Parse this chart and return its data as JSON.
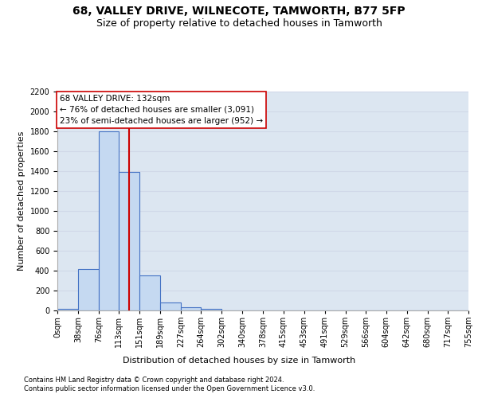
{
  "title_line1": "68, VALLEY DRIVE, WILNECOTE, TAMWORTH, B77 5FP",
  "title_line2": "Size of property relative to detached houses in Tamworth",
  "xlabel": "Distribution of detached houses by size in Tamworth",
  "ylabel": "Number of detached properties",
  "footnote1": "Contains HM Land Registry data © Crown copyright and database right 2024.",
  "footnote2": "Contains public sector information licensed under the Open Government Licence v3.0.",
  "bin_edges": [
    0,
    38,
    76,
    113,
    151,
    189,
    227,
    264,
    302,
    340,
    378,
    415,
    453,
    491,
    529,
    566,
    604,
    642,
    680,
    717,
    755
  ],
  "bar_heights": [
    15,
    420,
    1800,
    1390,
    350,
    80,
    30,
    15,
    0,
    0,
    0,
    0,
    0,
    0,
    0,
    0,
    0,
    0,
    0,
    0
  ],
  "bar_color": "#c5d9f1",
  "bar_edgecolor": "#4472c4",
  "grid_color": "#d0d8e8",
  "background_color": "#dce6f1",
  "vline_x": 132,
  "vline_color": "#cc0000",
  "annotation_text": "68 VALLEY DRIVE: 132sqm\n← 76% of detached houses are smaller (3,091)\n23% of semi-detached houses are larger (952) →",
  "annotation_box_color": "#ffffff",
  "annotation_box_edgecolor": "#cc0000",
  "ylim": [
    0,
    2200
  ],
  "yticks": [
    0,
    200,
    400,
    600,
    800,
    1000,
    1200,
    1400,
    1600,
    1800,
    2000,
    2200
  ],
  "title_fontsize": 10,
  "subtitle_fontsize": 9,
  "axis_label_fontsize": 8,
  "tick_fontsize": 7,
  "annotation_fontsize": 7.5,
  "footnote_fontsize": 6
}
